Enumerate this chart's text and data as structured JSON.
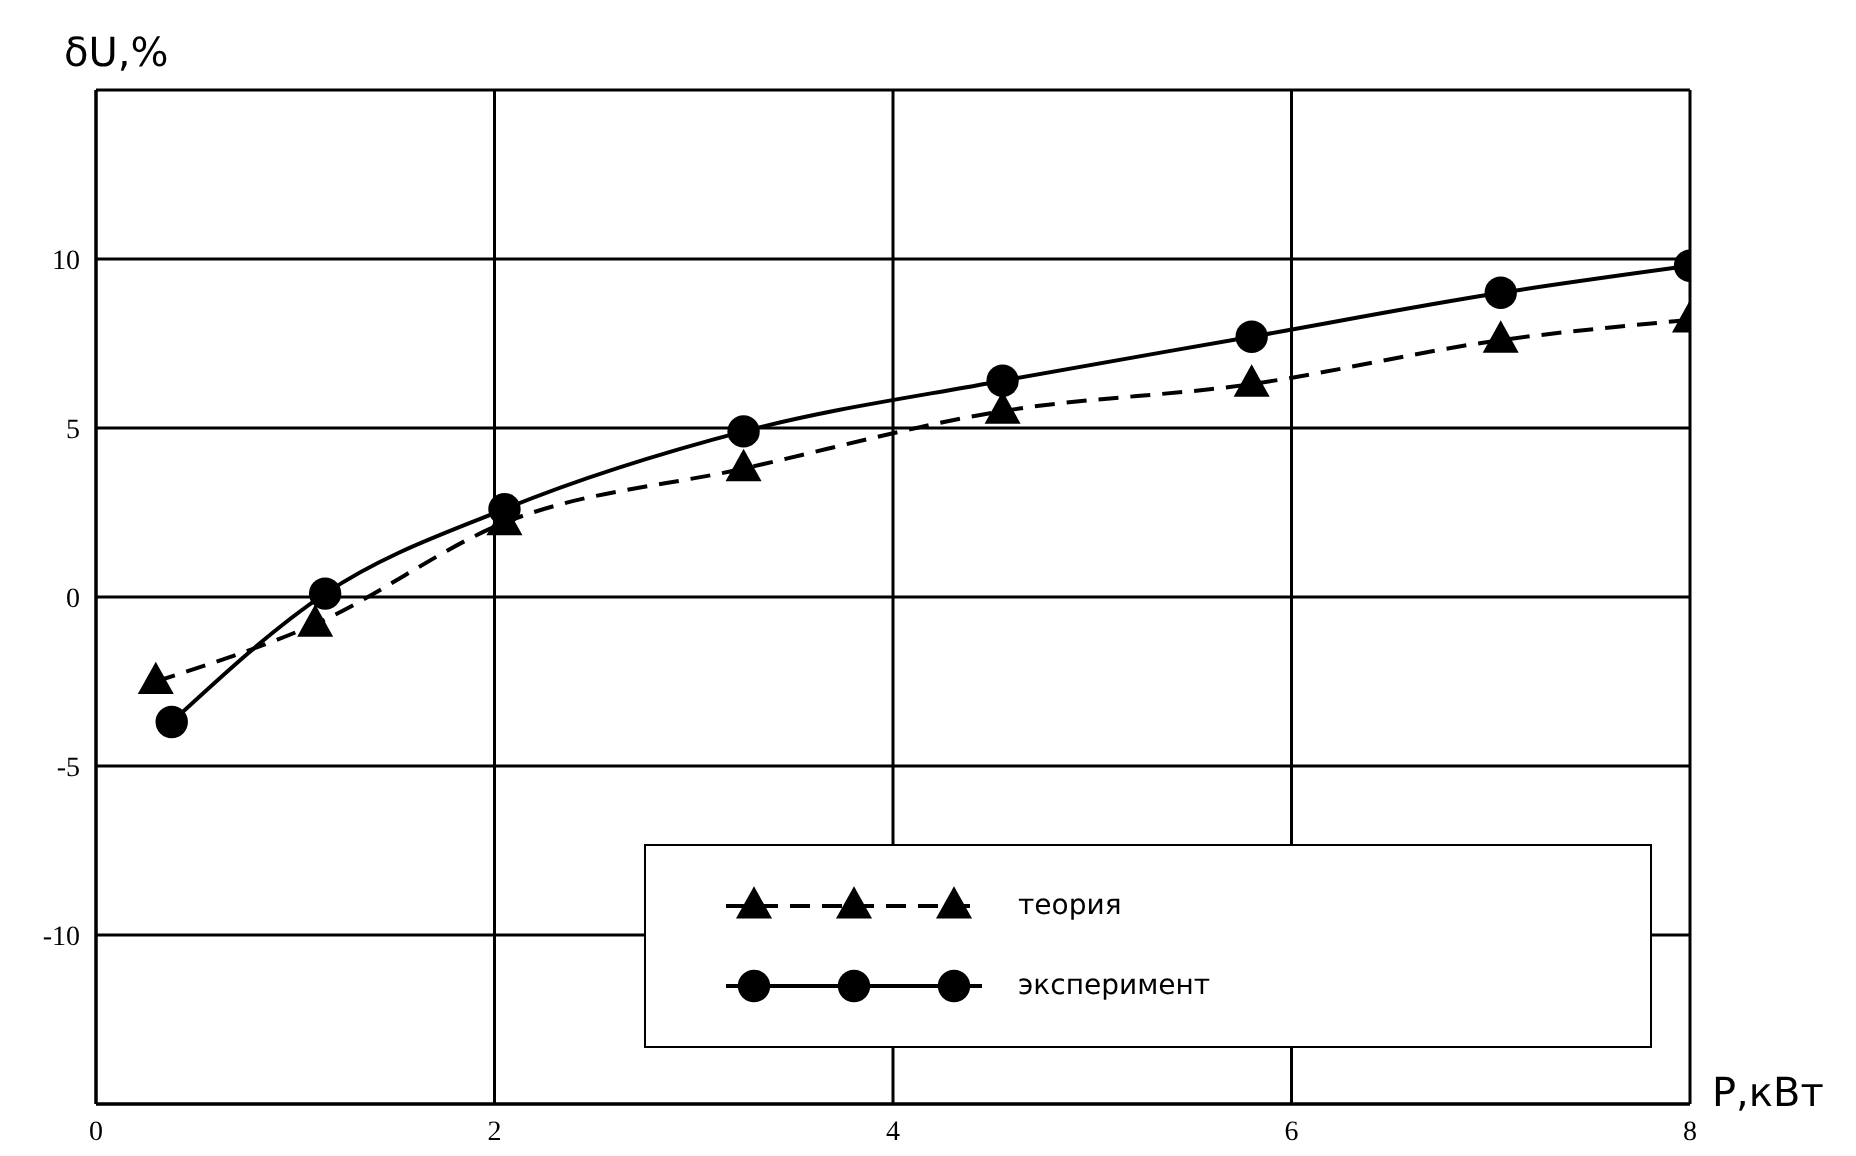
{
  "chart_data": {
    "type": "line",
    "xlabel": "P,кВт",
    "ylabel": "δU,%",
    "xlim": [
      0,
      8
    ],
    "xticks": [
      0,
      2,
      4,
      6,
      8
    ],
    "ylim": [
      -15,
      15
    ],
    "yticks": [
      {
        "value": -15,
        "label": null
      },
      -10,
      -5,
      0,
      5,
      10,
      {
        "value": 15,
        "label": null
      }
    ],
    "grid": true,
    "legend": "bottom right",
    "series": [
      {
        "name": "теория",
        "color": "#000000",
        "marker": "triangle",
        "line_style": "dashed",
        "x": [
          0.3,
          1.1,
          2.05,
          3.25,
          4.55,
          5.8,
          7.05,
          8.0
        ],
        "values": [
          -2.5,
          -0.8,
          2.2,
          3.8,
          5.5,
          6.3,
          7.6,
          8.2
        ]
      },
      {
        "name": "эксперимент",
        "color": "#000000",
        "marker": "circle",
        "line_style": "solid",
        "x": [
          0.38,
          1.15,
          2.05,
          3.25,
          4.55,
          5.8,
          7.05,
          8.0
        ],
        "values": [
          -3.7,
          0.1,
          2.6,
          4.9,
          6.4,
          7.7,
          9.0,
          9.8
        ]
      }
    ]
  }
}
